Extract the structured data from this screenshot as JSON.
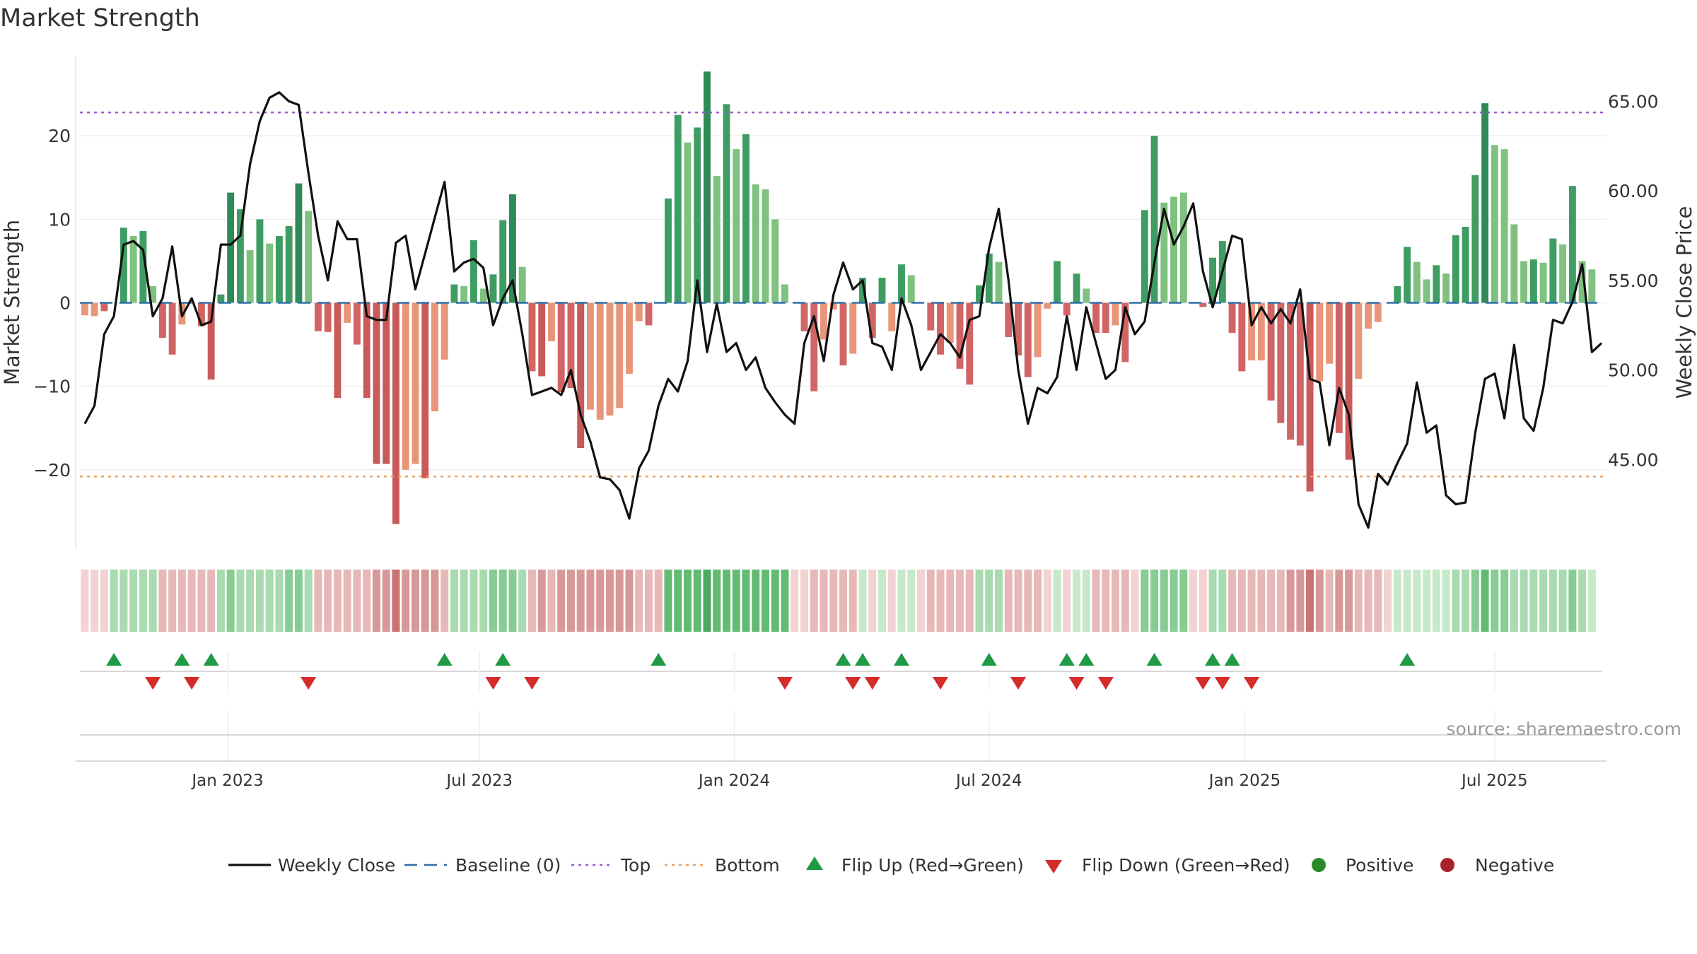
{
  "chart_data": {
    "type": "bar",
    "title": "Market Strength",
    "ylabel_left": "Market Strength",
    "ylabel_right": "Weekly Close Price",
    "source": "source: sharemaestro.com",
    "y_left_range": [
      -29.5,
      29.5
    ],
    "y_left_ticks": [
      20,
      10,
      0,
      -10,
      -20
    ],
    "y_left_tick_labels": [
      "20",
      "10",
      "0",
      "−10",
      "−20"
    ],
    "y_right_range": [
      40.0,
      67.5
    ],
    "y_right_ticks": [
      65,
      60,
      55,
      50,
      45
    ],
    "y_right_tick_labels": [
      "65.00",
      "60.00",
      "55.00",
      "50.00",
      "45.00"
    ],
    "top_level": 22.8,
    "bottom_level": -20.8,
    "x_week_range": [
      0,
      157
    ],
    "x_ticks": [
      {
        "week": 14.7,
        "label": "Jan 2023"
      },
      {
        "week": 40.6,
        "label": "Jul 2023"
      },
      {
        "week": 66.8,
        "label": "Jan 2024"
      },
      {
        "week": 93.0,
        "label": "Jul 2024"
      },
      {
        "week": 119.3,
        "label": "Jan 2025"
      },
      {
        "week": 145.0,
        "label": "Jul 2025"
      }
    ],
    "strength": [
      -1.5,
      -1.6,
      -1,
      0,
      9,
      8,
      8.6,
      2,
      -4.2,
      -6.2,
      -2.6,
      0,
      -2.8,
      -9.2,
      1,
      13.2,
      11.2,
      6.3,
      10,
      7.1,
      8,
      9.2,
      14.3,
      11,
      -3.4,
      -3.5,
      -11.4,
      -2.4,
      -5,
      -11.4,
      -19.3,
      -19.3,
      -26.5,
      -20,
      -19.3,
      -21,
      -13,
      -6.8,
      2.2,
      2,
      7.5,
      1.7,
      3.4,
      9.9,
      13,
      4.3,
      -8.2,
      -8.8,
      -4.6,
      -10.7,
      -10.2,
      -17.4,
      -12.8,
      -14,
      -13.5,
      -12.6,
      -8.5,
      -2.2,
      -2.7,
      0,
      12.5,
      22.5,
      19.2,
      21,
      27.7,
      15.2,
      23.8,
      18.4,
      20.2,
      14.2,
      13.6,
      10,
      2.2,
      0,
      -3.4,
      -10.6,
      -4.4,
      -0.8,
      -7.5,
      -6.1,
      3,
      -4.2,
      3,
      -3.4,
      4.6,
      3.3,
      0,
      -3.3,
      -6.2,
      -4.8,
      -7.9,
      -9.8,
      2.1,
      5.9,
      4.9,
      -4.1,
      -6.3,
      -8.9,
      -6.5,
      -0.7,
      5,
      -1.5,
      3.5,
      1.7,
      -3.6,
      -3.6,
      -2.7,
      -7.1,
      0,
      11.1,
      20,
      12,
      12.7,
      13.2,
      0,
      -0.5,
      5.4,
      7.4,
      -3.6,
      -8.2,
      -6.9,
      -6.9,
      -11.7,
      -14.4,
      -16.4,
      -17.1,
      -22.6,
      -9.4,
      -7.3,
      -15.6,
      -18.8,
      -9.1,
      -3.1,
      -2.3,
      0,
      2,
      6.7,
      4.9,
      2.8,
      4.5,
      3.5,
      8.1,
      9.1,
      15.3,
      23.9,
      18.9,
      18.4,
      9.4,
      5,
      5.2,
      4.8,
      7.7,
      7,
      14,
      5,
      4
    ],
    "strength_color_codes": [
      "N1",
      "N1",
      "N2",
      "N0",
      "G2",
      "G1",
      "G2",
      "G1",
      "N2",
      "N2",
      "N1",
      "N0",
      "N2",
      "N3",
      "G2",
      "G3",
      "G2",
      "G1",
      "G2",
      "G1",
      "G2",
      "G2",
      "G3",
      "G1",
      "N2",
      "N2",
      "N3",
      "N1",
      "N2",
      "N3",
      "N3",
      "N3",
      "N3",
      "N1",
      "N1",
      "N3",
      "N1",
      "N1",
      "G2",
      "G1",
      "G2",
      "G1",
      "G2",
      "G2",
      "G3",
      "G1",
      "N2",
      "N3",
      "N1",
      "N2",
      "N2",
      "N3",
      "N1",
      "N1",
      "N1",
      "N1",
      "N1",
      "N1",
      "N2",
      "N0",
      "G2",
      "G2",
      "G1",
      "G2",
      "G3",
      "G1",
      "G2",
      "G1",
      "G2",
      "G1",
      "G1",
      "G1",
      "G1",
      "N0",
      "N2",
      "N2",
      "N1",
      "N1",
      "N2",
      "N1",
      "G2",
      "N2",
      "G2",
      "N1",
      "G2",
      "G1",
      "N0",
      "N2",
      "N2",
      "N1",
      "N2",
      "N2",
      "G2",
      "G2",
      "G1",
      "N2",
      "N2",
      "N2",
      "N1",
      "N1",
      "G2",
      "N2",
      "G2",
      "G1",
      "N2",
      "N2",
      "N1",
      "N2",
      "N0",
      "G2",
      "G2",
      "G1",
      "G1",
      "G1",
      "N0",
      "N2",
      "G2",
      "G2",
      "N2",
      "N2",
      "N1",
      "N1",
      "N2",
      "N2",
      "N2",
      "N2",
      "N3",
      "N1",
      "N1",
      "N2",
      "N3",
      "N1",
      "N1",
      "N1",
      "N0",
      "G2",
      "G2",
      "G1",
      "G1",
      "G2",
      "G1",
      "G2",
      "G2",
      "G2",
      "G3",
      "G1",
      "G1",
      "G1",
      "G1",
      "G2",
      "G1",
      "G2",
      "G1",
      "G2",
      "G1",
      "G1"
    ],
    "weekly_close": [
      47.0,
      48.0,
      52.0,
      53.0,
      57.0,
      57.2,
      56.7,
      53.0,
      54.0,
      56.9,
      53.0,
      54.0,
      52.5,
      52.7,
      57.0,
      57.0,
      57.5,
      61.5,
      63.9,
      65.2,
      65.5,
      65.0,
      64.8,
      61.0,
      57.5,
      55.0,
      58.3,
      57.3,
      57.3,
      53.0,
      52.8,
      52.8,
      57.1,
      57.5,
      54.5,
      56.5,
      58.5,
      60.5,
      55.5,
      56.0,
      56.2,
      55.7,
      52.5,
      54.0,
      55.0,
      52.0,
      48.6,
      48.8,
      49.0,
      48.6,
      50.0,
      47.5,
      46.0,
      44.0,
      43.9,
      43.3,
      41.7,
      44.5,
      45.5,
      48.0,
      49.5,
      48.8,
      50.5,
      55.0,
      51.0,
      53.7,
      51.0,
      51.5,
      50.0,
      50.7,
      49.0,
      48.2,
      47.5,
      47.0,
      51.5,
      53.0,
      50.5,
      54.2,
      56.0,
      54.5,
      55.0,
      51.5,
      51.3,
      50.0,
      54.0,
      52.5,
      50.0,
      51.0,
      52.0,
      51.5,
      50.7,
      52.8,
      53.0,
      56.8,
      59.0,
      55.0,
      50.0,
      47.0,
      49.0,
      48.7,
      49.6,
      53.0,
      50.0,
      53.5,
      51.5,
      49.5,
      50.0,
      53.5,
      52.0,
      52.7,
      56.0,
      59.0,
      57.0,
      58.0,
      59.3,
      55.5,
      53.5,
      55.5,
      57.5,
      57.3,
      52.5,
      53.5,
      52.6,
      53.4,
      52.6,
      54.5,
      49.5,
      49.3,
      45.8,
      49.0,
      47.5,
      42.5,
      41.2,
      44.2,
      43.6,
      44.8,
      45.9,
      49.3,
      46.5,
      46.9,
      43.0,
      42.5,
      42.6,
      46.5,
      49.5,
      49.8,
      47.3,
      51.4,
      47.3,
      46.6,
      49.0,
      52.8,
      52.6,
      53.8,
      55.9,
      51.0,
      51.5
    ],
    "band_color_codes": [
      "P1",
      "P1",
      "P1",
      "G2",
      "G2",
      "G2",
      "G2",
      "G2",
      "P2",
      "P2",
      "P2",
      "P2",
      "P2",
      "P2",
      "G2",
      "G3",
      "G2",
      "G2",
      "G2",
      "G2",
      "G2",
      "G3",
      "G3",
      "G2",
      "P2",
      "P2",
      "P2",
      "P2",
      "P2",
      "P2",
      "P3",
      "P3",
      "P4",
      "P3",
      "P3",
      "P3",
      "P3",
      "P2",
      "G2",
      "G2",
      "G2",
      "G2",
      "G3",
      "G3",
      "G3",
      "G2",
      "P2",
      "P3",
      "P2",
      "P3",
      "P3",
      "P3",
      "P3",
      "P3",
      "P3",
      "P3",
      "P3",
      "P2",
      "P2",
      "P2",
      "G4",
      "G4",
      "G4",
      "G4",
      "G5",
      "G4",
      "G4",
      "G4",
      "G4",
      "G4",
      "G4",
      "G4",
      "G4",
      "P1",
      "P1",
      "P2",
      "P2",
      "P2",
      "P2",
      "P2",
      "G1",
      "P1",
      "G1",
      "P1",
      "G1",
      "G1",
      "P1",
      "P2",
      "P2",
      "P2",
      "P2",
      "P2",
      "G2",
      "G2",
      "G2",
      "P2",
      "P2",
      "P2",
      "P2",
      "P1",
      "G1",
      "P1",
      "G1",
      "G1",
      "P2",
      "P2",
      "P2",
      "P2",
      "P1",
      "G3",
      "G3",
      "G3",
      "G3",
      "G3",
      "P1",
      "P1",
      "G2",
      "G2",
      "P2",
      "P2",
      "P2",
      "P2",
      "P2",
      "P2",
      "P3",
      "P3",
      "P4",
      "P3",
      "P2",
      "P3",
      "P3",
      "P2",
      "P2",
      "P2",
      "P1",
      "G1",
      "G1",
      "G1",
      "G1",
      "G1",
      "G1",
      "G2",
      "G2",
      "G3",
      "G4",
      "G3",
      "G3",
      "G2",
      "G2",
      "G2",
      "G2",
      "G2",
      "G2",
      "G3",
      "G2",
      "G1"
    ],
    "flip_up_weeks": [
      3,
      10,
      13,
      37,
      43,
      59,
      78,
      80,
      84,
      93,
      101,
      103,
      110,
      116,
      118,
      136
    ],
    "flip_down_weeks": [
      7,
      11,
      23,
      42,
      46,
      72,
      79,
      81,
      88,
      96,
      102,
      105,
      115,
      117,
      120
    ],
    "legend": [
      {
        "label": "Weekly Close",
        "kind": "line"
      },
      {
        "label": "Baseline (0)",
        "kind": "dash"
      },
      {
        "label": "Top",
        "kind": "dot-purple"
      },
      {
        "label": "Bottom",
        "kind": "dot-orange"
      },
      {
        "label": "Flip Up (Red→Green)",
        "kind": "tri-up"
      },
      {
        "label": "Flip Down (Green→Red)",
        "kind": "tri-down"
      },
      {
        "label": "Positive",
        "kind": "circle-green"
      },
      {
        "label": "Negative",
        "kind": "circle-red"
      }
    ],
    "colors": {
      "G3": "#2e8b57",
      "G2": "#3f9d63",
      "G1": "#7fc17e",
      "N3": "#c95a5a",
      "N2": "#d16565",
      "N1": "#e8967a",
      "N0": "#e8967a",
      "band_G1": "#c7e9c9",
      "band_G2": "#a8dbaf",
      "band_G3": "#86cc93",
      "band_G4": "#63bb72",
      "band_G5": "#4aab5e",
      "band_P1": "#f2d2d2",
      "band_P2": "#e7b8b8",
      "band_P3": "#d99898",
      "band_P4": "#c97373",
      "close": "#111111",
      "baseline": "#2f6fa8",
      "top": "#9b59d0",
      "bottom": "#e8a060",
      "flip_up": "#1f9a45",
      "flip_down": "#d42c2c",
      "positive": "#2a8a2a",
      "negative": "#a8222a"
    }
  }
}
